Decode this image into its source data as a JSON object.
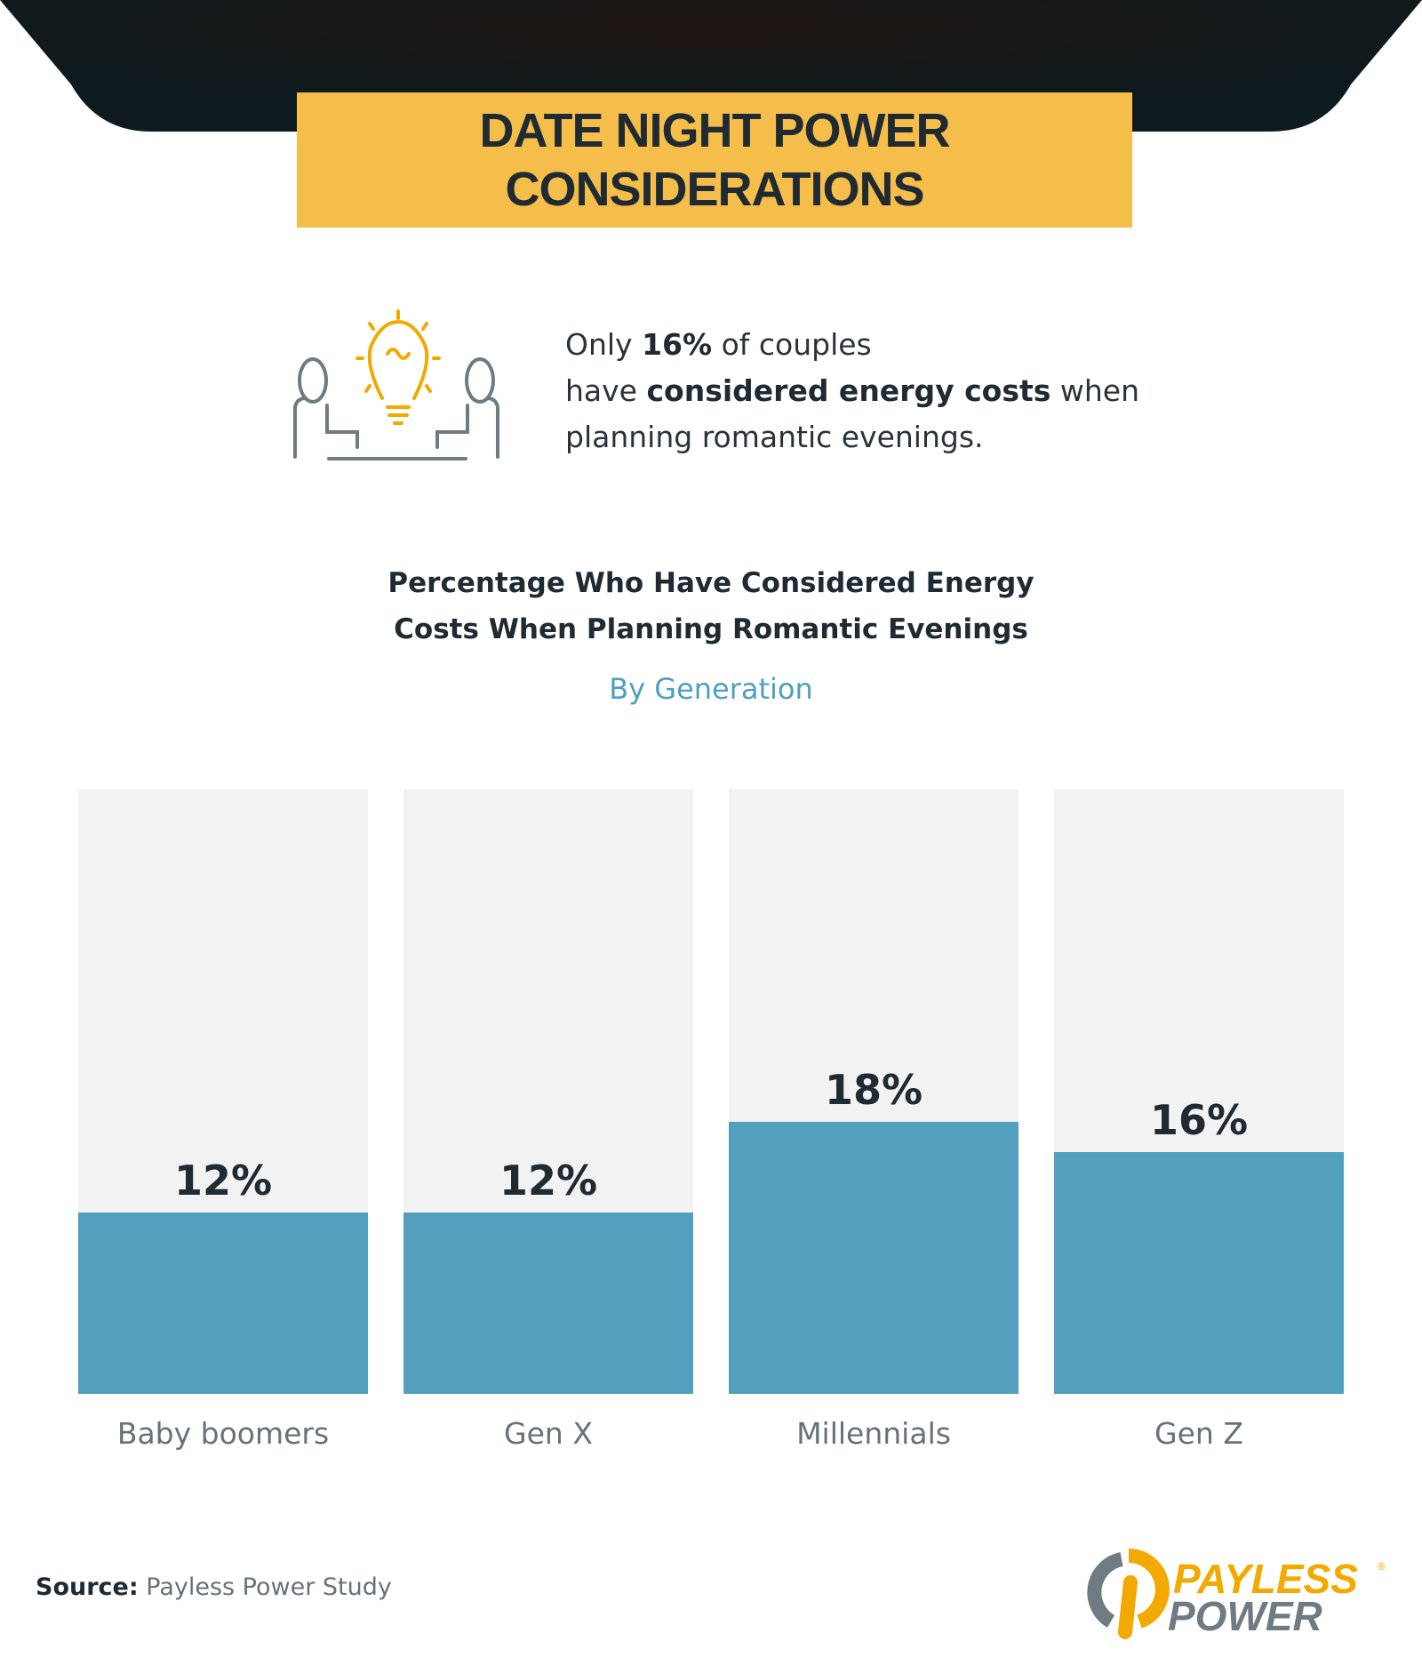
{
  "header": {
    "title": "DATE NIGHT POWER CONSIDERATIONS"
  },
  "stat": {
    "pre": "Only",
    "highlight": "16%",
    "mid": "of couples",
    "line2_pre": "have",
    "line2_bold": "considered energy costs",
    "line2_post": "when",
    "line3": "planning romantic evenings."
  },
  "chart_data": {
    "type": "bar",
    "title": "Percentage Who Have Considered Energy Costs When Planning Romantic Evenings",
    "title_line1": "Percentage Who Have Considered Energy",
    "title_line2": "Costs When Planning Romantic Evenings",
    "subtitle": "By Generation",
    "categories": [
      "Baby boomers",
      "Gen X",
      "Millennials",
      "Gen Z"
    ],
    "values": [
      12,
      12,
      18,
      16
    ],
    "labels": [
      "12%",
      "12%",
      "18%",
      "16%"
    ],
    "ylim": [
      0,
      40
    ],
    "xlabel": "",
    "ylabel": "",
    "grid": false,
    "colors": {
      "bar": "#52a0be",
      "track": "#f2f2f2"
    }
  },
  "footer": {
    "source_label": "Source:",
    "source_text": "Payless Power Study",
    "logo_text": "PAYLESS POWER"
  },
  "colors": {
    "accent": "#f5bd4a",
    "dark": "#1f2a33",
    "blue": "#4f9fc0"
  }
}
